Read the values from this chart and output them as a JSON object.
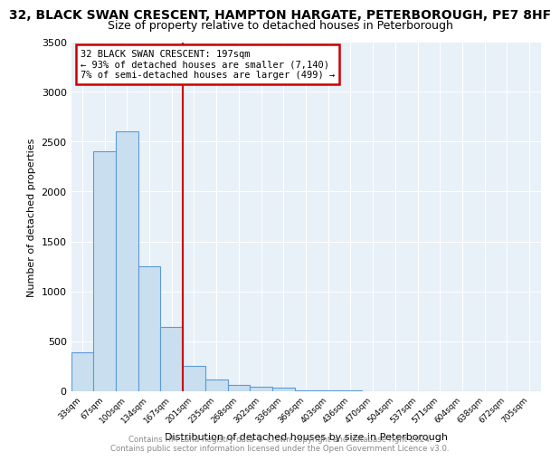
{
  "title_line1": "32, BLACK SWAN CRESCENT, HAMPTON HARGATE, PETERBOROUGH, PE7 8HF",
  "title_line2": "Size of property relative to detached houses in Peterborough",
  "xlabel": "Distribution of detached houses by size in Peterborough",
  "ylabel": "Number of detached properties",
  "categories": [
    "33sqm",
    "67sqm",
    "100sqm",
    "134sqm",
    "167sqm",
    "201sqm",
    "235sqm",
    "268sqm",
    "302sqm",
    "336sqm",
    "369sqm",
    "403sqm",
    "436sqm",
    "470sqm",
    "504sqm",
    "537sqm",
    "571sqm",
    "604sqm",
    "638sqm",
    "672sqm",
    "705sqm"
  ],
  "values": [
    390,
    2400,
    2600,
    1250,
    640,
    250,
    110,
    55,
    45,
    30,
    5,
    5,
    5,
    0,
    0,
    0,
    0,
    0,
    0,
    0,
    0
  ],
  "bar_color": "#c9dff0",
  "bar_edge_color": "#5b9bd5",
  "red_line_index": 5,
  "annotation_line1": "32 BLACK SWAN CRESCENT: 197sqm",
  "annotation_line2": "← 93% of detached houses are smaller (7,140)",
  "annotation_line3": "7% of semi-detached houses are larger (499) →",
  "annotation_box_color": "#ffffff",
  "annotation_box_edge": "#cc0000",
  "ylim": [
    0,
    3500
  ],
  "yticks": [
    0,
    500,
    1000,
    1500,
    2000,
    2500,
    3000,
    3500
  ],
  "footer1": "Contains HM Land Registry data © Crown copyright and database right 2024.",
  "footer2": "Contains public sector information licensed under the Open Government Licence v3.0.",
  "plot_bg_color": "#e8f0f8",
  "grid_color": "#ffffff",
  "title1_fontsize": 10,
  "title2_fontsize": 9,
  "bar_width": 1.0
}
